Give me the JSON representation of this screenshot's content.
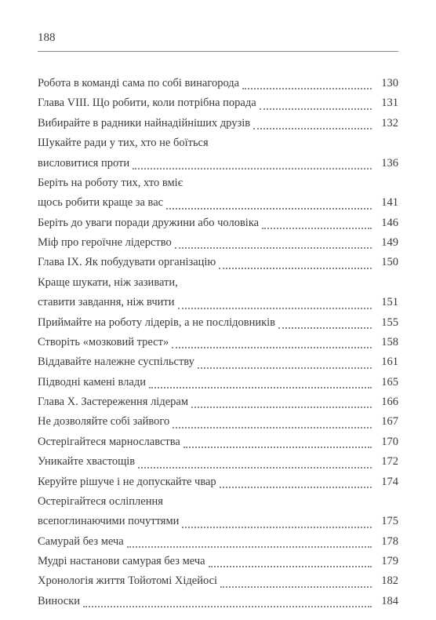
{
  "page_number": "188",
  "entries": [
    {
      "title_lines": [
        "Робота в команді сама по собі винагорода"
      ],
      "page": "130"
    },
    {
      "title_lines": [
        "Глава VIII. Що робити, коли потрібна порада"
      ],
      "page": "131"
    },
    {
      "title_lines": [
        "Вибирайте в радники найнадійніших друзів"
      ],
      "page": "132"
    },
    {
      "title_lines": [
        "Шукайте ради у тих, хто не боїться",
        "висловитися проти"
      ],
      "page": "136"
    },
    {
      "title_lines": [
        "Беріть на роботу тих, хто вміє",
        "щось робити краще за вас"
      ],
      "page": "141"
    },
    {
      "title_lines": [
        "Беріть до уваги поради дружини або чоловіка"
      ],
      "page": "146"
    },
    {
      "title_lines": [
        "Міф про героїчне лідерство"
      ],
      "page": "149"
    },
    {
      "title_lines": [
        "Глава IX. Як побудувати організацію"
      ],
      "page": "150"
    },
    {
      "title_lines": [
        "Краще шукати, ніж зазивати,",
        "ставити завдання, ніж вчити"
      ],
      "page": "151"
    },
    {
      "title_lines": [
        "Приймайте на роботу лідерів, а не послідовників"
      ],
      "page": "155"
    },
    {
      "title_lines": [
        "Створіть «мозковий трест»"
      ],
      "page": "158"
    },
    {
      "title_lines": [
        "Віддавайте належне суспільству"
      ],
      "page": "161"
    },
    {
      "title_lines": [
        "Підводні камені влади"
      ],
      "page": "165"
    },
    {
      "title_lines": [
        "Глава X. Застереження лідерам"
      ],
      "page": "166"
    },
    {
      "title_lines": [
        "Не дозволяйте собі зайвого"
      ],
      "page": "167"
    },
    {
      "title_lines": [
        "Остерігайтеся марнославства"
      ],
      "page": "170"
    },
    {
      "title_lines": [
        "Уникайте хвастощів"
      ],
      "page": "172"
    },
    {
      "title_lines": [
        "Керуйте рішуче і не допускайте чвар"
      ],
      "page": "174"
    },
    {
      "title_lines": [
        "Остерігайтеся осліплення",
        "всепоглинаючими почуттями"
      ],
      "page": "175"
    },
    {
      "title_lines": [
        "Самурай без меча"
      ],
      "page": "178"
    },
    {
      "title_lines": [
        "Мудрі настанови самурая без меча"
      ],
      "page": "179"
    },
    {
      "title_lines": [
        "Хронологія життя Тойотомі Хідейосі"
      ],
      "page": "182"
    },
    {
      "title_lines": [
        "Виноски"
      ],
      "page": "184"
    }
  ],
  "colors": {
    "text": "#3a3a3a",
    "rule": "#888888",
    "background": "#ffffff"
  }
}
